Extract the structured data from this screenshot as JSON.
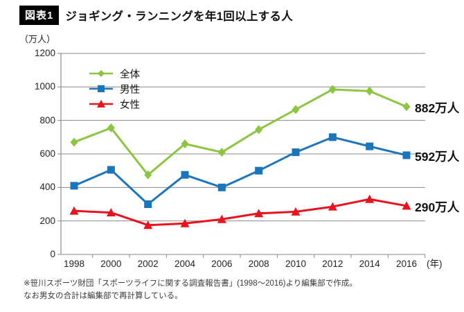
{
  "figure": {
    "badge": "図表1",
    "title": "ジョギング・ランニングを年1回以上する人",
    "unit_label": "（万人）",
    "x_axis_suffix": "(年)"
  },
  "footnote": {
    "line1": "※笹川スポーツ財団「スポーツライフに関する調査報告書」(1998～2016)より編集部で作成。",
    "line2": "なお男女の合計は編集部で再計算している。"
  },
  "chart_data": {
    "type": "line",
    "title": "ジョギング・ランニングを年1回以上する人",
    "ylabel": "（万人）",
    "xlabel": "(年)",
    "categories": [
      "1998",
      "2000",
      "2002",
      "2004",
      "2006",
      "2008",
      "2010",
      "2012",
      "2014",
      "2016"
    ],
    "series": [
      {
        "key": "total",
        "name": "全体",
        "color": "#8CC63F",
        "marker": "diamond",
        "values": [
          670,
          755,
          475,
          660,
          610,
          745,
          865,
          985,
          975,
          882
        ],
        "end_label": "882万人"
      },
      {
        "key": "male",
        "name": "男性",
        "color": "#1B75BC",
        "marker": "square",
        "values": [
          410,
          505,
          300,
          475,
          400,
          500,
          610,
          700,
          645,
          592
        ],
        "end_label": "592万人"
      },
      {
        "key": "female",
        "name": "女性",
        "color": "#E8131D",
        "marker": "triangle",
        "values": [
          260,
          250,
          175,
          185,
          210,
          245,
          255,
          285,
          330,
          290
        ],
        "end_label": "290万人"
      }
    ],
    "ylim": [
      0,
      1200
    ],
    "yticks": [
      0,
      200,
      400,
      600,
      800,
      1000,
      1200
    ],
    "grid": "horizontal",
    "grid_color": "#8a8a8a",
    "legend_position": "top-left-inside"
  }
}
